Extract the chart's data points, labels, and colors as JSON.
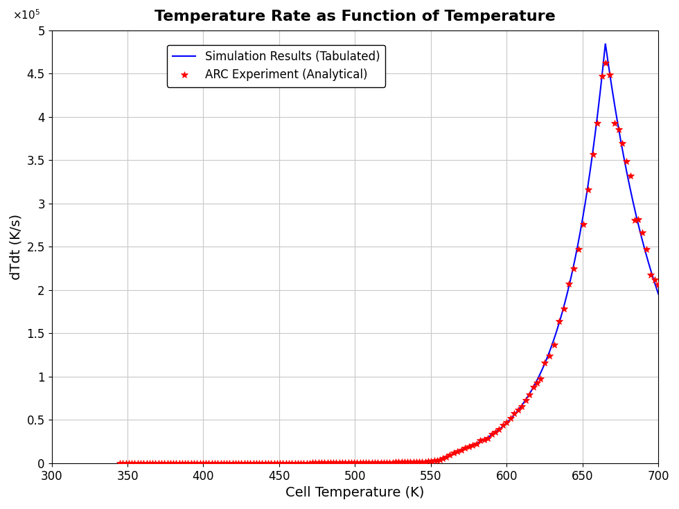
{
  "title": "Temperature Rate as Function of Temperature",
  "xlabel": "Cell Temperature (K)",
  "ylabel": "dTdt (K/s)",
  "xlim": [
    300,
    700
  ],
  "ylim": [
    0,
    500000.0
  ],
  "xticks": [
    300,
    350,
    400,
    450,
    500,
    550,
    600,
    650,
    700
  ],
  "yticks": [
    0,
    50000.0,
    100000.0,
    150000.0,
    200000.0,
    250000.0,
    300000.0,
    350000.0,
    400000.0,
    450000.0,
    500000.0
  ],
  "ytick_labels": [
    "0",
    "0.5",
    "1",
    "1.5",
    "2",
    "2.5",
    "3",
    "3.5",
    "4",
    "4.5",
    "5"
  ],
  "legend_labels": [
    "ARC Experiment (Analytical)",
    "Simulation Results (Tabulated)"
  ],
  "arc_color": "red",
  "sim_color": "blue",
  "background_color": "white",
  "grid_color": "#b0b0b0",
  "title_fontsize": 16,
  "label_fontsize": 14,
  "tick_fontsize": 12,
  "legend_fontsize": 12
}
